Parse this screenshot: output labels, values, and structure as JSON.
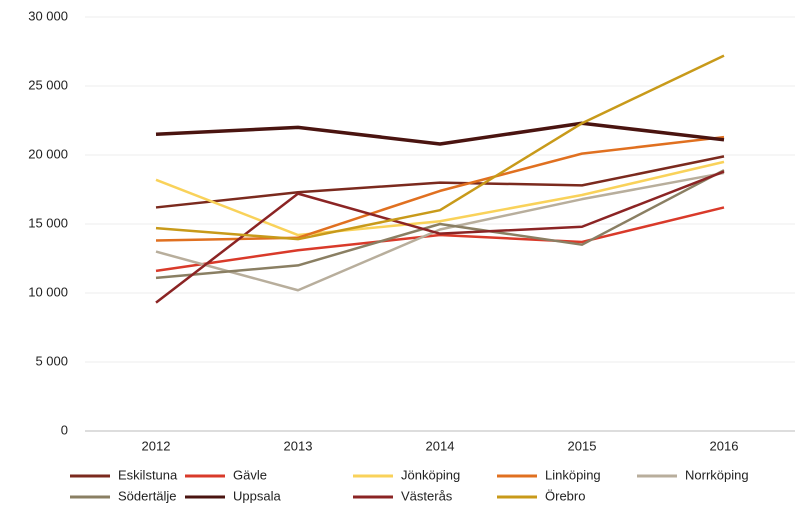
{
  "chart_data": {
    "type": "line",
    "categories": [
      "2012",
      "2013",
      "2014",
      "2015",
      "2016"
    ],
    "ylim": [
      0,
      30000
    ],
    "yticks": [
      0,
      {
        "value": 5000,
        "label": "5 000"
      },
      {
        "value": 10000,
        "label": "10 000"
      },
      {
        "value": 15000,
        "label": "15 000"
      },
      {
        "value": 20000,
        "label": "20 000"
      },
      {
        "value": 25000,
        "label": "25 000"
      },
      {
        "value": 30000,
        "label": "30 000"
      }
    ],
    "grid": true,
    "legend": "bottom",
    "series": [
      {
        "name": "Eskilstuna",
        "color": "#7b2a1e",
        "values": [
          16200,
          17300,
          18000,
          17800,
          19900
        ]
      },
      {
        "name": "Gävle",
        "color": "#d93a2a",
        "values": [
          11600,
          13100,
          14200,
          13700,
          16200
        ]
      },
      {
        "name": "Jönköping",
        "color": "#f9d25a",
        "values": [
          18200,
          14200,
          15200,
          17100,
          19500
        ]
      },
      {
        "name": "Linköping",
        "color": "#e07020",
        "values": [
          13800,
          14000,
          17400,
          20100,
          21300
        ]
      },
      {
        "name": "Norrköping",
        "color": "#b8ae9c",
        "values": [
          13000,
          10200,
          14600,
          16800,
          18700
        ]
      },
      {
        "name": "Södertälje",
        "color": "#8a7f63",
        "values": [
          11100,
          12000,
          15000,
          13500,
          18900
        ]
      },
      {
        "name": "Uppsala",
        "color": "#4a1410",
        "values": [
          21500,
          22000,
          20800,
          22300,
          21100
        ]
      },
      {
        "name": "Västerås",
        "color": "#8b2424",
        "values": [
          9300,
          17200,
          14300,
          14800,
          18800
        ]
      },
      {
        "name": "Örebro",
        "color": "#c89a1a",
        "values": [
          14700,
          13900,
          16000,
          22300,
          27200
        ]
      }
    ]
  }
}
